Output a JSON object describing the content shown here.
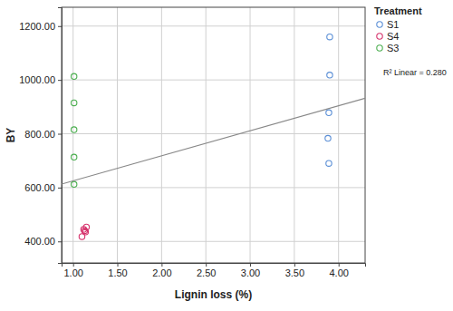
{
  "chart_data": {
    "type": "scatter",
    "x_label": "Lignin loss (%)",
    "y_label": "BY",
    "legend_title": "Treatment",
    "legend": "right",
    "grid": true,
    "marker": "circle-open",
    "xlim": [
      0.87,
      4.3
    ],
    "ylim": [
      320,
      1270
    ],
    "xticks": [
      {
        "value": 1,
        "label": "1.00"
      },
      {
        "value": 1.5,
        "label": "1.50"
      },
      {
        "value": 2,
        "label": "2.00"
      },
      {
        "value": 2.5,
        "label": "2.50"
      },
      {
        "value": 3,
        "label": "3.00"
      },
      {
        "value": 3.5,
        "label": "3.50"
      },
      {
        "value": 4,
        "label": "4.00"
      }
    ],
    "yticks": [
      {
        "value": 400,
        "label": "400.00"
      },
      {
        "value": 600,
        "label": "600.00"
      },
      {
        "value": 800,
        "label": "800.00"
      },
      {
        "value": 1000,
        "label": "1000.00"
      },
      {
        "value": 1200,
        "label": "1200.00"
      }
    ],
    "series": [
      {
        "name": "S1",
        "color": "#5b8fd6",
        "marker": "circle-open",
        "x": [
          3.9,
          3.9,
          3.89,
          3.88,
          3.89
        ],
        "values": [
          1160,
          1018,
          878,
          783,
          690
        ]
      },
      {
        "name": "S4",
        "color": "#d6336c",
        "marker": "circle-open",
        "x": [
          1.15,
          1.13,
          1.14,
          1.1,
          1.12
        ],
        "values": [
          453,
          440,
          435,
          418,
          445
        ]
      },
      {
        "name": "S3",
        "color": "#4caf50",
        "marker": "circle-open",
        "x": [
          1.01,
          1.01,
          1.01,
          1.01,
          1.01
        ],
        "values": [
          1013,
          915,
          815,
          713,
          612
        ]
      },
      {
        "name": "R² Linear = 0.280",
        "type": "line",
        "color": "#888888",
        "line_style": "solid",
        "x": [
          0.87,
          4.3
        ],
        "values": [
          613,
          932
        ]
      }
    ]
  }
}
